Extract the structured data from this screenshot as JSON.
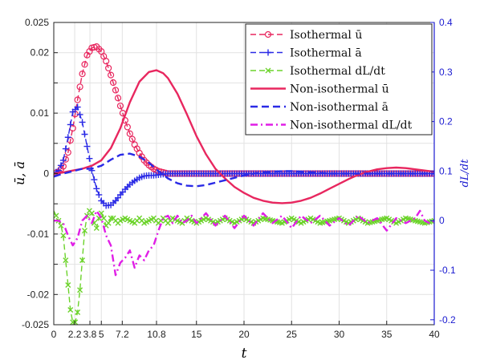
{
  "chart_data": {
    "type": "line",
    "title": "",
    "xlabel": "t",
    "ylabel_left": "ū, ā",
    "ylabel_right": "dL/dt",
    "xlim": [
      0,
      40
    ],
    "ylim_left": [
      -0.025,
      0.025
    ],
    "ylim_right": [
      -0.21,
      0.4
    ],
    "grid": true,
    "legend_position": "top-right",
    "x_ticks": [
      "0",
      "2.2",
      "3.8",
      "5",
      "7.2",
      "10.8",
      "15",
      "20",
      "25",
      "30",
      "35",
      "40"
    ],
    "x_tick_values": [
      0,
      2.2,
      3.8,
      5,
      7.2,
      10.8,
      15,
      20,
      25,
      30,
      35,
      40
    ],
    "y_ticks_left": [
      "0.025",
      "0.02",
      "",
      "0.01",
      "",
      "0",
      "",
      "-0.01",
      "",
      "-0.02",
      "-0.025"
    ],
    "y_tick_values_left": [
      0.025,
      0.02,
      0.015,
      0.01,
      0.005,
      0,
      -0.005,
      -0.01,
      -0.015,
      -0.02,
      -0.025
    ],
    "y_ticks_right": [
      "0.4",
      "0.3",
      "0.2",
      "0.1",
      "0",
      "-0.1",
      "-0.2"
    ],
    "y_tick_values_right": [
      0.4,
      0.3,
      0.2,
      0.1,
      0,
      -0.1,
      -0.2
    ],
    "colors": {
      "u": "#e8275f",
      "a": "#2a2ae6",
      "dl": "#6cd32b",
      "dl_noniso": "#e01ee6",
      "right_axis": "#1a1ad0"
    },
    "series": [
      {
        "name": "Isothermal ū",
        "axis": "left",
        "style": "dash-circle",
        "color": "#e8275f",
        "x": [
          0,
          0.5,
          1,
          1.5,
          2,
          2.5,
          3,
          3.5,
          4,
          4.5,
          5,
          5.5,
          6,
          6.5,
          7,
          7.5,
          8,
          8.5,
          9,
          9.5,
          10,
          10.5,
          11,
          11.5,
          12,
          12.5,
          13,
          14,
          15,
          16,
          18,
          20,
          24,
          28,
          32,
          36,
          40
        ],
        "y": [
          0,
          0.0003,
          0.0012,
          0.0035,
          0.0075,
          0.0122,
          0.0165,
          0.0196,
          0.0208,
          0.021,
          0.0202,
          0.0186,
          0.0163,
          0.0138,
          0.0112,
          0.0088,
          0.0066,
          0.0048,
          0.0034,
          0.0022,
          0.0014,
          0.0008,
          0.0004,
          0.0002,
          0,
          0,
          0,
          0,
          0,
          0,
          0,
          0,
          0,
          0,
          0,
          0,
          0
        ]
      },
      {
        "name": "Isothermal ā",
        "axis": "left",
        "style": "dash-plus",
        "color": "#2a2ae6",
        "x": [
          0,
          0.5,
          1,
          1.5,
          2,
          2.5,
          3,
          3.5,
          4,
          4.5,
          5,
          5.5,
          6,
          6.5,
          7,
          7.5,
          8,
          8.5,
          9,
          9.5,
          10,
          10.5,
          11,
          11.5,
          12,
          12.5,
          13,
          14,
          15,
          16,
          18,
          20,
          24,
          28,
          32,
          36,
          40
        ],
        "y": [
          0,
          0.0005,
          0.0022,
          0.006,
          0.0102,
          0.011,
          0.0085,
          0.0045,
          0.0005,
          -0.0025,
          -0.0045,
          -0.0053,
          -0.0052,
          -0.0045,
          -0.0035,
          -0.0026,
          -0.0018,
          -0.0012,
          -0.0007,
          -0.0004,
          -0.0003,
          -0.0003,
          -0.0002,
          -0.0001,
          0,
          0,
          0,
          0,
          0,
          0,
          0,
          0,
          0,
          0,
          0,
          0,
          0
        ]
      },
      {
        "name": "Isothermal dL/dt",
        "axis": "right",
        "style": "dash-x",
        "color": "#6cd32b",
        "x": [
          0,
          0.25,
          0.5,
          0.75,
          1,
          1.25,
          1.5,
          1.75,
          2,
          2.25,
          2.5,
          2.75,
          3,
          3.25,
          3.5,
          3.75,
          4,
          4.25,
          4.5,
          4.75,
          5,
          5.25,
          5.5,
          5.75,
          6,
          6.25,
          6.5,
          6.75,
          7,
          7.5,
          8,
          8.5,
          9,
          9.5,
          10,
          10.5,
          11,
          11.5,
          12,
          12.5,
          13,
          13.5,
          14,
          15,
          16,
          17,
          18,
          19,
          20,
          21,
          22,
          23,
          24,
          25,
          26,
          27,
          28,
          29,
          30,
          31,
          32,
          33,
          34,
          35,
          36,
          37,
          38,
          39,
          40
        ],
        "y": [
          0.02,
          0.01,
          0,
          -0.01,
          -0.03,
          -0.08,
          -0.13,
          -0.18,
          -0.205,
          -0.205,
          -0.185,
          -0.14,
          -0.08,
          -0.02,
          0.01,
          0.02,
          0.015,
          -0.005,
          -0.015,
          0.005,
          0.015,
          0.005,
          -0.01,
          -0.005,
          0.005,
          0.005,
          0,
          -0.005,
          0,
          0.005,
          0,
          -0.005,
          0.005,
          -0.005,
          0,
          0.005,
          -0.005,
          0.005,
          -0.005,
          0.005,
          0,
          -0.005,
          0.005,
          -0.005,
          0.005,
          -0.005,
          0.005,
          -0.005,
          0.005,
          -0.005,
          0.005,
          0,
          -0.005,
          0.005,
          -0.005,
          0.005,
          -0.005,
          0,
          0.005,
          -0.005,
          0.005,
          -0.005,
          0,
          0.005,
          -0.005,
          0.005,
          0,
          -0.005,
          0
        ]
      },
      {
        "name": "Non-isothermal ū",
        "axis": "left",
        "style": "solid",
        "color": "#e8275f",
        "x": [
          0,
          1,
          2,
          3,
          4,
          5,
          6,
          7,
          8,
          9,
          10,
          10.8,
          11.5,
          12,
          13,
          14,
          15,
          16,
          17,
          18,
          19,
          20,
          21,
          22,
          23,
          24,
          25,
          26,
          27,
          28,
          29,
          30,
          31,
          32,
          33,
          34,
          35,
          36,
          37,
          38,
          39,
          40
        ],
        "y": [
          0,
          0.0002,
          0.0005,
          0.0008,
          0.0013,
          0.0022,
          0.0042,
          0.0075,
          0.0118,
          0.0152,
          0.0168,
          0.0171,
          0.0166,
          0.0158,
          0.0132,
          0.0098,
          0.0062,
          0.0032,
          0.0008,
          -0.0008,
          -0.0022,
          -0.0032,
          -0.004,
          -0.0045,
          -0.0048,
          -0.0049,
          -0.0048,
          -0.0045,
          -0.004,
          -0.0033,
          -0.0025,
          -0.0017,
          -0.0009,
          -0.0002,
          0.0003,
          0.0007,
          0.0009,
          0.001,
          0.0009,
          0.0007,
          0.0005,
          0.0003
        ]
      },
      {
        "name": "Non-isothermal ā",
        "axis": "left",
        "style": "dash",
        "color": "#2a2ae6",
        "x": [
          0,
          1,
          2,
          3,
          4,
          5,
          6,
          7,
          8,
          9,
          10,
          11,
          12,
          13,
          14,
          15,
          16,
          17,
          18,
          19,
          20,
          21,
          22,
          23,
          24,
          25,
          26,
          27,
          28,
          29,
          30,
          31,
          32,
          33,
          34,
          35,
          36,
          37,
          38,
          39,
          40
        ],
        "y": [
          -0.0005,
          0,
          0.0004,
          0.0008,
          0.0008,
          0.0013,
          0.0023,
          0.0031,
          0.0033,
          0.0028,
          0.0018,
          0.0004,
          -0.0008,
          -0.0016,
          -0.002,
          -0.0021,
          -0.0019,
          -0.0015,
          -0.0011,
          -0.0007,
          -0.0003,
          0,
          0.0002,
          0.0003,
          0.0004,
          0.0004,
          0.0003,
          0.0002,
          0.0001,
          0,
          0,
          0,
          0,
          0,
          0,
          0,
          0,
          0,
          0,
          0,
          0
        ]
      },
      {
        "name": "Non-isothermal dL/dt",
        "axis": "right",
        "style": "dashdot",
        "color": "#e01ee6",
        "x": [
          0,
          0.5,
          1,
          1.5,
          2,
          2.5,
          3,
          3.5,
          4,
          4.5,
          5,
          5.5,
          6,
          6.5,
          7,
          7.5,
          8,
          8.5,
          9,
          9.5,
          10,
          10.5,
          11,
          11.5,
          12,
          12.5,
          13,
          13.5,
          14,
          14.5,
          15,
          16,
          17,
          18,
          19,
          20,
          21,
          22,
          23,
          24,
          25,
          26,
          27,
          28,
          29,
          30,
          31,
          32,
          33,
          34,
          35,
          36,
          37,
          38,
          38.5,
          39,
          39.5,
          40
        ],
        "y": [
          0,
          0,
          -0.005,
          -0.03,
          -0.05,
          -0.035,
          0,
          0.01,
          -0.005,
          0.02,
          0.005,
          -0.03,
          -0.05,
          -0.11,
          -0.085,
          -0.075,
          -0.06,
          -0.095,
          -0.07,
          -0.08,
          -0.06,
          -0.05,
          -0.02,
          0.005,
          0.01,
          -0.005,
          0.01,
          -0.005,
          0,
          0.01,
          -0.005,
          0.015,
          -0.01,
          0.01,
          -0.015,
          0.01,
          -0.01,
          0.015,
          -0.005,
          0.01,
          -0.015,
          0.01,
          -0.005,
          0.01,
          -0.01,
          0.005,
          -0.01,
          0.01,
          -0.005,
          0.005,
          -0.02,
          0.005,
          -0.005,
          0.005,
          0.02,
          0,
          -0.005,
          0
        ]
      }
    ]
  }
}
